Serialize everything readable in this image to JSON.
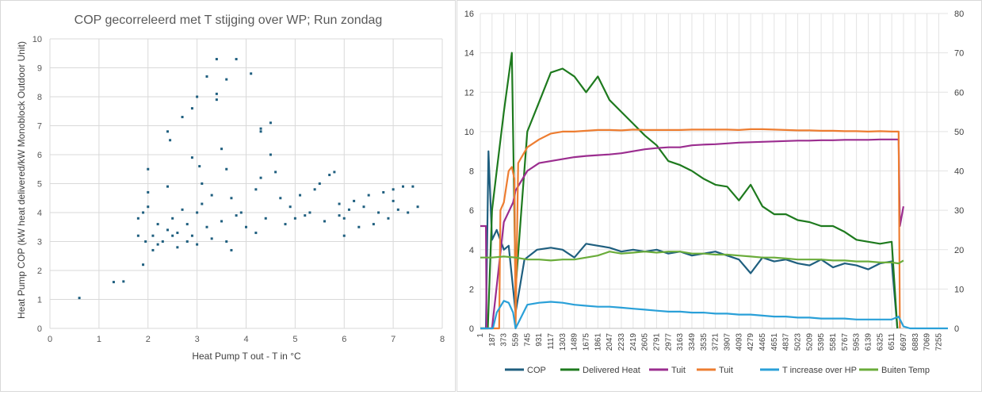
{
  "chart_data": [
    {
      "type": "scatter",
      "title": "COP gecorreleerd met T stijging over WP; Run zondag",
      "xlabel": "Heat Pump T out - T in °C",
      "ylabel": "Heat Pump COP (kW heat delivered/kW Monoblock Outdoor Unit)",
      "xlim": [
        0,
        8
      ],
      "ylim": [
        0,
        10
      ],
      "xticks": [
        "0",
        "1",
        "2",
        "3",
        "4",
        "5",
        "6",
        "7",
        "8"
      ],
      "yticks": [
        "0",
        "1",
        "2",
        "3",
        "4",
        "5",
        "6",
        "7",
        "8",
        "9",
        "10"
      ],
      "grid": true,
      "color": "#1f5f7f",
      "points": [
        [
          0.6,
          1.05
        ],
        [
          1.3,
          1.6
        ],
        [
          1.5,
          1.62
        ],
        [
          1.8,
          3.2
        ],
        [
          1.8,
          3.8
        ],
        [
          1.9,
          2.2
        ],
        [
          1.9,
          4.0
        ],
        [
          2.0,
          5.5
        ],
        [
          2.0,
          4.7
        ],
        [
          2.0,
          4.2
        ],
        [
          1.95,
          3.0
        ],
        [
          2.1,
          2.7
        ],
        [
          2.1,
          3.2
        ],
        [
          2.2,
          3.6
        ],
        [
          2.2,
          2.9
        ],
        [
          2.3,
          3.0
        ],
        [
          2.4,
          3.4
        ],
        [
          2.4,
          6.8
        ],
        [
          2.4,
          4.9
        ],
        [
          2.45,
          6.5
        ],
        [
          2.5,
          3.8
        ],
        [
          2.5,
          3.2
        ],
        [
          2.6,
          2.8
        ],
        [
          2.6,
          3.3
        ],
        [
          2.7,
          4.1
        ],
        [
          2.7,
          7.3
        ],
        [
          2.8,
          3.0
        ],
        [
          2.8,
          3.6
        ],
        [
          2.9,
          7.6
        ],
        [
          2.9,
          5.9
        ],
        [
          2.9,
          3.2
        ],
        [
          3.0,
          8.0
        ],
        [
          3.0,
          4.0
        ],
        [
          3.0,
          2.9
        ],
        [
          3.05,
          5.6
        ],
        [
          3.1,
          5.0
        ],
        [
          3.1,
          4.3
        ],
        [
          3.2,
          8.7
        ],
        [
          3.2,
          3.5
        ],
        [
          3.3,
          3.1
        ],
        [
          3.3,
          4.6
        ],
        [
          3.4,
          9.3
        ],
        [
          3.4,
          8.1
        ],
        [
          3.4,
          7.9
        ],
        [
          3.5,
          6.2
        ],
        [
          3.5,
          3.7
        ],
        [
          3.6,
          8.6
        ],
        [
          3.6,
          5.5
        ],
        [
          3.6,
          3.0
        ],
        [
          3.7,
          2.7
        ],
        [
          3.7,
          4.5
        ],
        [
          3.8,
          9.3
        ],
        [
          3.8,
          3.9
        ],
        [
          3.9,
          4.0
        ],
        [
          4.1,
          8.8
        ],
        [
          4.0,
          3.5
        ],
        [
          4.2,
          4.8
        ],
        [
          4.2,
          3.3
        ],
        [
          4.3,
          6.8
        ],
        [
          4.3,
          6.9
        ],
        [
          4.3,
          5.2
        ],
        [
          4.4,
          3.8
        ],
        [
          4.5,
          7.1
        ],
        [
          4.5,
          6.0
        ],
        [
          4.6,
          5.4
        ],
        [
          4.7,
          4.5
        ],
        [
          4.8,
          3.6
        ],
        [
          4.9,
          4.2
        ],
        [
          5.0,
          3.8
        ],
        [
          5.1,
          4.6
        ],
        [
          5.2,
          3.9
        ],
        [
          5.3,
          4.0
        ],
        [
          5.4,
          4.8
        ],
        [
          5.5,
          5.0
        ],
        [
          5.6,
          3.7
        ],
        [
          5.7,
          5.3
        ],
        [
          5.8,
          5.4
        ],
        [
          5.9,
          4.3
        ],
        [
          5.9,
          3.9
        ],
        [
          6.0,
          3.8
        ],
        [
          6.0,
          3.2
        ],
        [
          6.1,
          4.1
        ],
        [
          6.2,
          4.4
        ],
        [
          6.3,
          3.5
        ],
        [
          6.4,
          4.2
        ],
        [
          6.5,
          4.6
        ],
        [
          6.6,
          3.6
        ],
        [
          6.7,
          4.0
        ],
        [
          6.8,
          4.7
        ],
        [
          6.9,
          3.8
        ],
        [
          7.0,
          4.8
        ],
        [
          7.0,
          4.4
        ],
        [
          7.1,
          4.1
        ],
        [
          7.2,
          4.9
        ],
        [
          7.3,
          4.0
        ],
        [
          7.4,
          4.9
        ],
        [
          7.5,
          4.2
        ]
      ]
    },
    {
      "type": "line",
      "x_tick_labels": [
        "1",
        "187",
        "373",
        "559",
        "745",
        "931",
        "1117",
        "1303",
        "1489",
        "1675",
        "1861",
        "2047",
        "2233",
        "2419",
        "2605",
        "2791",
        "2977",
        "3163",
        "3349",
        "3535",
        "3721",
        "3907",
        "4093",
        "4279",
        "4465",
        "4651",
        "4837",
        "5023",
        "5209",
        "5395",
        "5581",
        "5767",
        "5953",
        "6139",
        "6325",
        "6511",
        "6697",
        "6883",
        "7069",
        "7255"
      ],
      "xlim": [
        1,
        7400
      ],
      "left_ylim": [
        0,
        16
      ],
      "left_yticks": [
        "0",
        "2",
        "4",
        "6",
        "8",
        "10",
        "12",
        "14",
        "16"
      ],
      "right_ylim": [
        0,
        80
      ],
      "right_yticks": [
        "0",
        "10",
        "20",
        "30",
        "40",
        "50",
        "60",
        "70",
        "80"
      ],
      "grid": true,
      "legend": "bottom",
      "series": [
        {
          "name": "COP",
          "axis": "left",
          "color": "#1f5f7f",
          "x": [
            1,
            90,
            130,
            187,
            260,
            373,
            450,
            559,
            700,
            900,
            1117,
            1303,
            1489,
            1675,
            1861,
            2047,
            2233,
            2419,
            2605,
            2791,
            2977,
            3163,
            3349,
            3535,
            3721,
            3907,
            4093,
            4279,
            4465,
            4651,
            4837,
            5023,
            5209,
            5395,
            5581,
            5767,
            5953,
            6139,
            6325,
            6511,
            6600
          ],
          "y": [
            0,
            0,
            9,
            4.5,
            5,
            4,
            4.2,
            0.8,
            3.5,
            4,
            4.1,
            4,
            3.6,
            4.3,
            4.2,
            4.1,
            3.9,
            4.0,
            3.9,
            4.0,
            3.8,
            3.9,
            3.7,
            3.8,
            3.9,
            3.7,
            3.5,
            2.8,
            3.6,
            3.4,
            3.5,
            3.3,
            3.2,
            3.5,
            3.1,
            3.3,
            3.2,
            3.0,
            3.3,
            3.4,
            0
          ]
        },
        {
          "name": "Delivered Heat",
          "axis": "left",
          "color": "#1e7a1e",
          "x": [
            1,
            120,
            187,
            260,
            373,
            500,
            559,
            650,
            745,
            931,
            1117,
            1303,
            1489,
            1675,
            1861,
            2047,
            2233,
            2419,
            2605,
            2791,
            2977,
            3163,
            3349,
            3535,
            3721,
            3907,
            4093,
            4279,
            4465,
            4651,
            4837,
            5023,
            5209,
            5395,
            5581,
            5767,
            5953,
            6139,
            6325,
            6511,
            6600
          ],
          "y": [
            0,
            0,
            6,
            8,
            11,
            14,
            2,
            6,
            10,
            11.5,
            13,
            13.2,
            12.8,
            12,
            12.8,
            11.6,
            11,
            10.4,
            9.8,
            9.3,
            8.5,
            8.3,
            8,
            7.6,
            7.3,
            7.2,
            6.5,
            7.3,
            6.2,
            5.8,
            5.8,
            5.5,
            5.4,
            5.2,
            5.2,
            4.9,
            4.5,
            4.4,
            4.3,
            4.4,
            0
          ]
        },
        {
          "name": "Tuit",
          "axis": "right",
          "color": "#9b2d8f",
          "x": [
            1,
            90,
            100,
            187,
            373,
            520,
            559,
            745,
            931,
            1117,
            1303,
            1489,
            1675,
            1861,
            2047,
            2233,
            2419,
            2605,
            2791,
            2977,
            3163,
            3349,
            3535,
            3721,
            3907,
            4093,
            4279,
            4465,
            4651,
            4837,
            5023,
            5209,
            5395,
            5581,
            5767,
            5953,
            6139,
            6325,
            6511,
            6620,
            6640,
            6697
          ],
          "y": [
            26,
            26,
            0,
            0,
            27,
            32,
            35,
            40,
            42,
            42.5,
            43,
            43.5,
            43.8,
            44,
            44.2,
            44.5,
            45,
            45.5,
            45.8,
            46,
            46,
            46.5,
            46.7,
            46.8,
            47,
            47.2,
            47.3,
            47.4,
            47.5,
            47.6,
            47.7,
            47.7,
            47.8,
            47.8,
            47.9,
            47.9,
            47.9,
            48,
            48,
            48,
            26,
            31
          ]
        },
        {
          "name": "Tuit",
          "axis": "right",
          "color": "#ed7d31",
          "x": [
            1,
            300,
            320,
            373,
            450,
            500,
            540,
            559,
            600,
            745,
            931,
            1117,
            1303,
            1489,
            1675,
            1861,
            2047,
            2233,
            2419,
            2605,
            2791,
            2977,
            3163,
            3349,
            3535,
            3721,
            3907,
            4093,
            4279,
            4465,
            4651,
            4837,
            5023,
            5209,
            5395,
            5581,
            5767,
            5953,
            6139,
            6325,
            6511,
            6620,
            6640
          ],
          "y": [
            0,
            0,
            30,
            32,
            40,
            41,
            38,
            0,
            42,
            46,
            48,
            49.5,
            50,
            50,
            50.2,
            50.4,
            50.4,
            50.3,
            50.5,
            50.4,
            50.4,
            50.4,
            50.4,
            50.5,
            50.5,
            50.5,
            50.5,
            50.4,
            50.6,
            50.6,
            50.5,
            50.4,
            50.3,
            50.3,
            50.2,
            50.2,
            50.1,
            50.1,
            50.0,
            50.1,
            50.0,
            50,
            0
          ]
        },
        {
          "name": "T increase over HP",
          "axis": "left",
          "color": "#2aa0d8",
          "x": [
            1,
            200,
            260,
            373,
            450,
            520,
            559,
            745,
            931,
            1117,
            1303,
            1489,
            1675,
            1861,
            2047,
            2233,
            2419,
            2605,
            2791,
            2977,
            3163,
            3349,
            3535,
            3721,
            3907,
            4093,
            4279,
            4465,
            4651,
            4837,
            5023,
            5209,
            5395,
            5581,
            5767,
            5953,
            6139,
            6325,
            6511,
            6620,
            6697,
            6800,
            7400
          ],
          "y": [
            0,
            0,
            0.8,
            1.4,
            1.3,
            0.8,
            0,
            1.2,
            1.3,
            1.35,
            1.3,
            1.2,
            1.15,
            1.1,
            1.1,
            1.05,
            1.0,
            0.95,
            0.9,
            0.85,
            0.85,
            0.8,
            0.8,
            0.75,
            0.75,
            0.7,
            0.7,
            0.65,
            0.6,
            0.6,
            0.55,
            0.55,
            0.5,
            0.5,
            0.5,
            0.45,
            0.45,
            0.45,
            0.45,
            0.6,
            0.1,
            0,
            0
          ]
        },
        {
          "name": "Buiten Temp",
          "axis": "left",
          "color": "#6aac3a",
          "x": [
            1,
            187,
            373,
            559,
            745,
            931,
            1117,
            1303,
            1489,
            1675,
            1861,
            2047,
            2233,
            2419,
            2605,
            2791,
            2977,
            3163,
            3349,
            3535,
            3721,
            3907,
            4093,
            4279,
            4465,
            4651,
            4837,
            5023,
            5209,
            5395,
            5581,
            5767,
            5953,
            6139,
            6325,
            6511,
            6620,
            6697
          ],
          "y": [
            3.6,
            3.6,
            3.65,
            3.6,
            3.5,
            3.5,
            3.45,
            3.5,
            3.5,
            3.6,
            3.7,
            3.9,
            3.8,
            3.85,
            3.9,
            3.85,
            3.9,
            3.9,
            3.8,
            3.8,
            3.75,
            3.75,
            3.7,
            3.65,
            3.6,
            3.6,
            3.55,
            3.5,
            3.5,
            3.5,
            3.45,
            3.45,
            3.4,
            3.4,
            3.35,
            3.35,
            3.3,
            3.45
          ]
        }
      ]
    }
  ]
}
